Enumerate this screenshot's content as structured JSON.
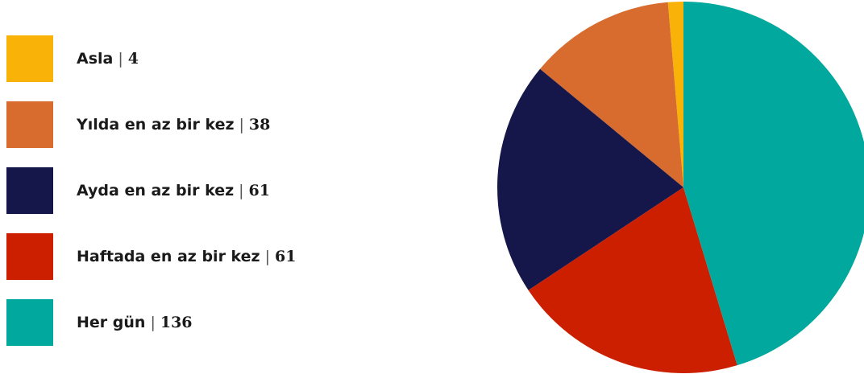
{
  "chart_data": {
    "type": "pie",
    "title": "",
    "legend_placement": "left",
    "slices": [
      {
        "label": "Asla",
        "value": 4,
        "color": "#F9B208"
      },
      {
        "label": "Yılda en az bir kez",
        "value": 38,
        "color": "#D86C2E"
      },
      {
        "label": "Ayda en az bir kez",
        "value": 61,
        "color": "#15174B"
      },
      {
        "label": "Haftada en az bir kez",
        "value": 61,
        "color": "#CC1F00"
      },
      {
        "label": "Her gün",
        "value": 136,
        "color": "#00A89D"
      }
    ]
  }
}
